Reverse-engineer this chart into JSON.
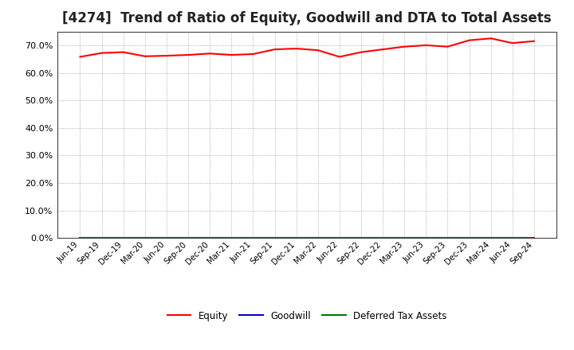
{
  "title": "[4274]  Trend of Ratio of Equity, Goodwill and DTA to Total Assets",
  "title_fontsize": 12,
  "background_color": "#ffffff",
  "plot_background_color": "#ffffff",
  "grid_color": "#999999",
  "x_labels": [
    "Jun-19",
    "Sep-19",
    "Dec-19",
    "Mar-20",
    "Jun-20",
    "Sep-20",
    "Dec-20",
    "Mar-21",
    "Jun-21",
    "Sep-21",
    "Dec-21",
    "Mar-22",
    "Jun-22",
    "Sep-22",
    "Dec-22",
    "Mar-23",
    "Jun-23",
    "Sep-23",
    "Dec-23",
    "Mar-24",
    "Jun-24",
    "Sep-24"
  ],
  "equity": [
    65.8,
    67.2,
    67.5,
    66.0,
    66.2,
    66.5,
    67.0,
    66.5,
    66.8,
    68.5,
    68.8,
    68.2,
    65.8,
    67.5,
    68.5,
    69.5,
    70.0,
    69.5,
    71.8,
    72.5,
    70.8,
    71.5
  ],
  "goodwill": [
    0,
    0,
    0,
    0,
    0,
    0,
    0,
    0,
    0,
    0,
    0,
    0,
    0,
    0,
    0,
    0,
    0,
    0,
    0,
    0,
    0,
    0
  ],
  "dta": [
    0,
    0,
    0,
    0,
    0,
    0,
    0,
    0,
    0,
    0,
    0,
    0,
    0,
    0,
    0,
    0,
    0,
    0,
    0,
    0,
    0,
    0
  ],
  "equity_color": "#ff0000",
  "goodwill_color": "#0000cc",
  "dta_color": "#007700",
  "ylim": [
    0,
    75
  ],
  "yticks": [
    0.0,
    10.0,
    20.0,
    30.0,
    40.0,
    50.0,
    60.0,
    70.0
  ],
  "legend_labels": [
    "Equity",
    "Goodwill",
    "Deferred Tax Assets"
  ]
}
